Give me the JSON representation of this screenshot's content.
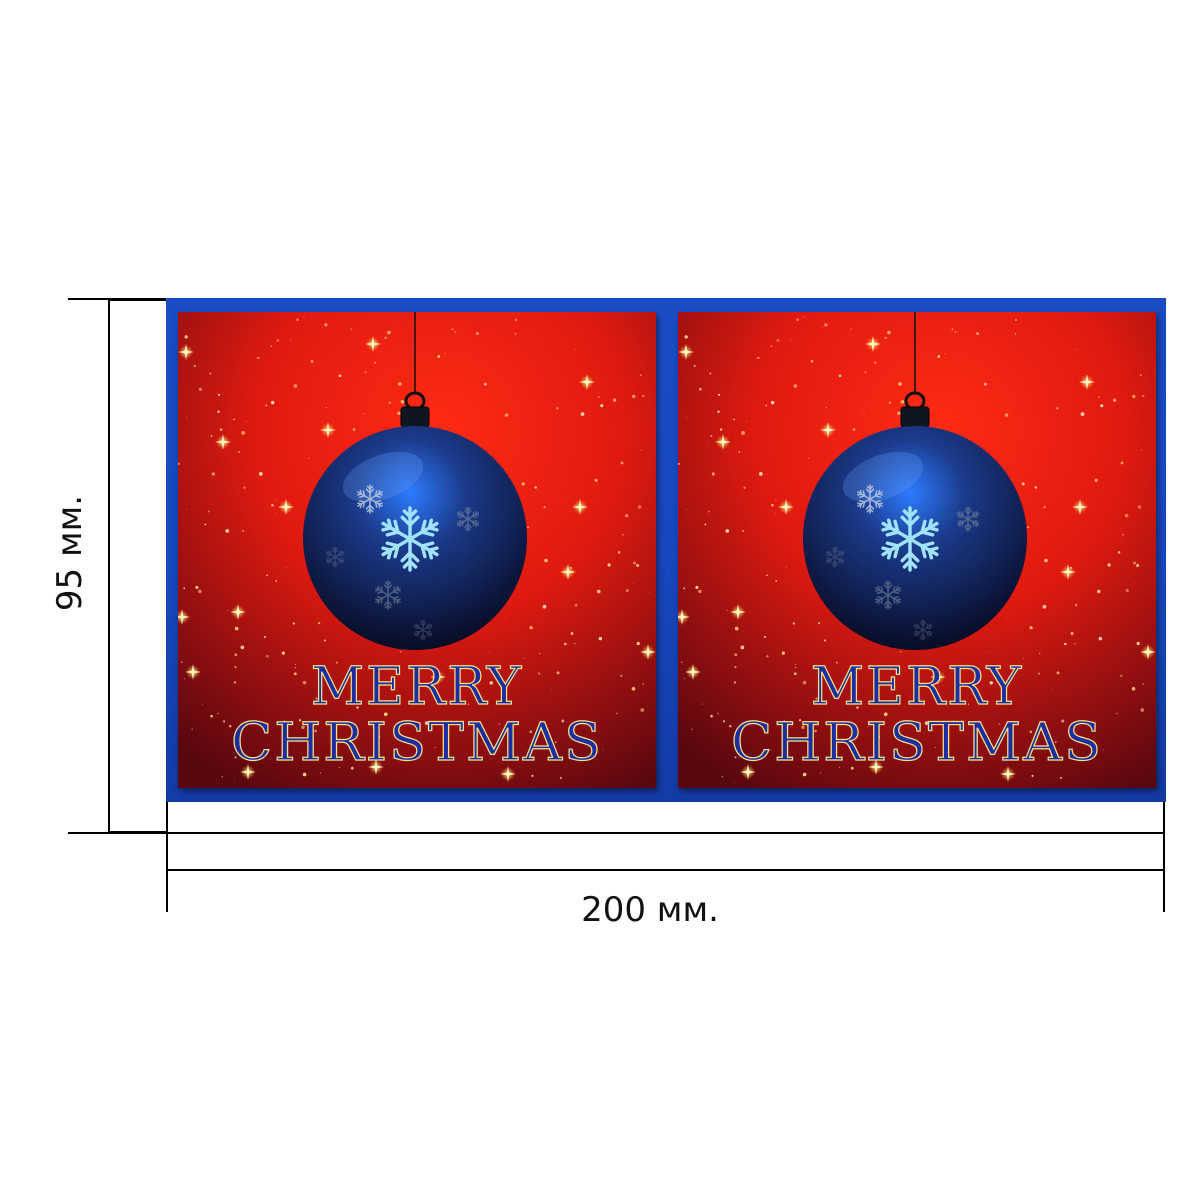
{
  "dimensions": {
    "width_label": "200 мм.",
    "height_label": "95 мм."
  },
  "panels": [
    {
      "line1": "MERRY",
      "line2": "CHRISTMAS"
    },
    {
      "line1": "MERRY",
      "line2": "CHRISTMAS"
    }
  ],
  "colors": {
    "frame": "#1b4cc4",
    "background_top": "#e01a10",
    "background_bottom": "#5a0710",
    "ornament": "#1b3a8a",
    "snowflake": "#9fe3ff",
    "text_fill": "#1d2fa0",
    "text_outline": "#f2e28a"
  },
  "icons": [
    "ornament-icon",
    "snowflake-icon",
    "star-icon"
  ]
}
